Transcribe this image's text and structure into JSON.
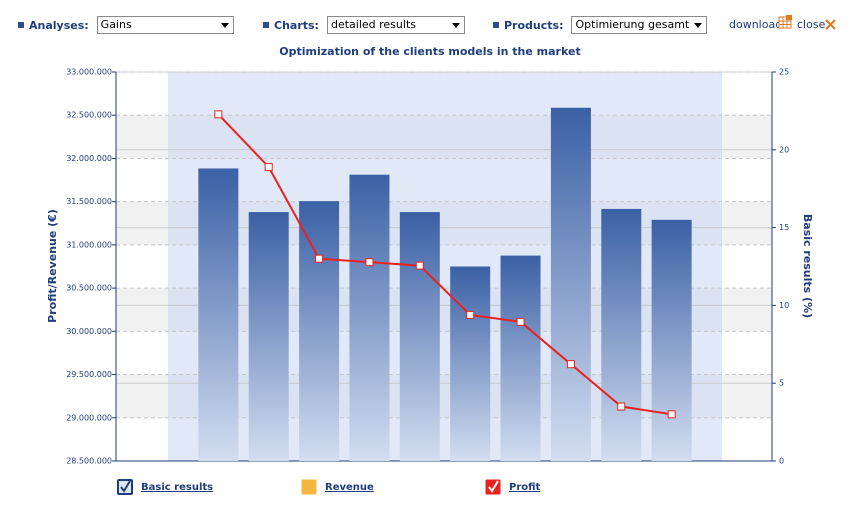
{
  "toolbar": {
    "filters": [
      {
        "label": "Analyses:",
        "value": "Gains"
      },
      {
        "label": "Charts:",
        "value": "detailed results"
      },
      {
        "label": "Products:",
        "value": "Optimierung gesamt"
      }
    ],
    "download": "download",
    "close": "close"
  },
  "chart_data": {
    "type": "bar",
    "title": "Optimization of the clients models in the market",
    "ylabel": "Profit/Revenue (€)",
    "y2label": "Basic results (%)",
    "categories": [
      null,
      null,
      null,
      null,
      null,
      null,
      null,
      null,
      null,
      null
    ],
    "series": [
      {
        "name": "Basic results",
        "type": "bar",
        "axis": "y2",
        "color": "#3d64a8",
        "visible": true,
        "values": [
          18.8,
          16.0,
          16.7,
          18.4,
          16.0,
          12.5,
          13.2,
          22.7,
          16.2,
          15.5
        ]
      },
      {
        "name": "Revenue",
        "type": "line",
        "color": "#f5b53f",
        "visible": false,
        "values": [
          null,
          null,
          null,
          null,
          null,
          null,
          null,
          null,
          null,
          null
        ]
      },
      {
        "name": "Profit",
        "type": "line",
        "color": "#e8231f",
        "visible": true,
        "values": [
          32510000,
          31900000,
          30840000,
          30800000,
          30760000,
          30190000,
          30110000,
          29620000,
          29130000,
          29040000
        ]
      }
    ],
    "ylim": [
      28500000,
      33000000
    ],
    "yticks": [
      {
        "value": 28500000,
        "label": "28.500.000"
      },
      {
        "value": 29000000,
        "label": "29.000.000"
      },
      {
        "value": 29500000,
        "label": "29.500.000"
      },
      {
        "value": 30000000,
        "label": "30.000.000"
      },
      {
        "value": 30500000,
        "label": "30.500.000"
      },
      {
        "value": 31000000,
        "label": "31.000.000"
      },
      {
        "value": 31500000,
        "label": "31.500.000"
      },
      {
        "value": 32000000,
        "label": "32.000.000"
      },
      {
        "value": 32500000,
        "label": "32.500.000"
      },
      {
        "value": 33000000,
        "label": "33.000.000"
      }
    ],
    "y2lim": [
      0,
      25
    ],
    "y2ticks": [
      0,
      5,
      10,
      15,
      20,
      25
    ],
    "grid": true,
    "legend": "bottom"
  }
}
